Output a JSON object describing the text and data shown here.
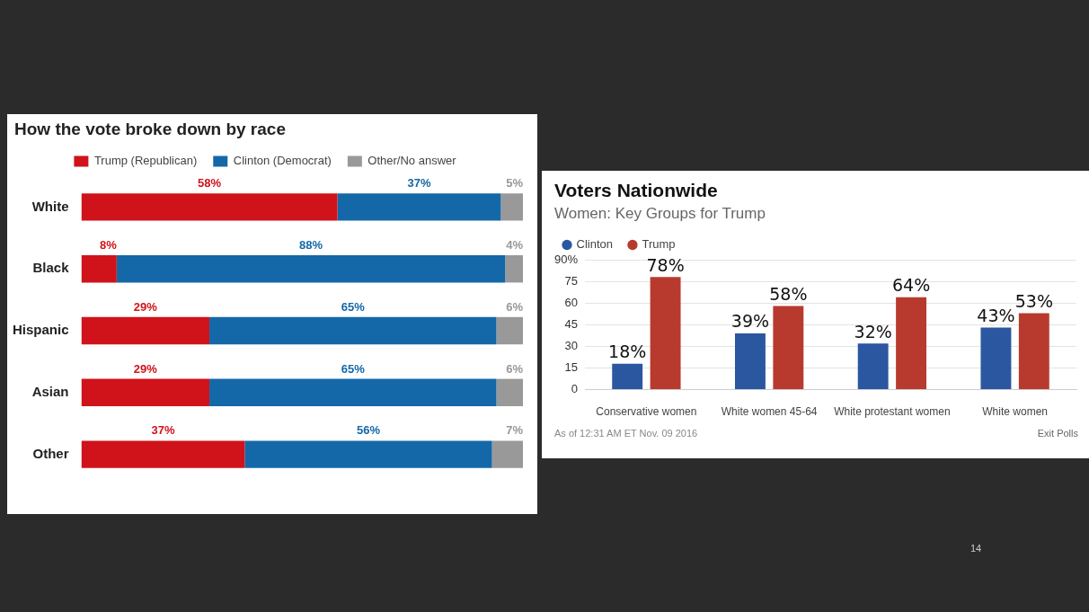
{
  "chart_data": [
    {
      "type": "bar",
      "title": "How the vote broke down by race",
      "orientation": "horizontal",
      "stacked": true,
      "legend": "top",
      "grid": false,
      "tick_labels": "y",
      "categories": [
        "White",
        "Black",
        "Hispanic",
        "Asian",
        "Other"
      ],
      "series": [
        {
          "name": "Trump (Republican)",
          "color": "#d0121b",
          "values": [
            58,
            8,
            29,
            29,
            37
          ],
          "value_labels": [
            "58%",
            "8%",
            "29%",
            "29%",
            "37%"
          ]
        },
        {
          "name": "Clinton (Democrat)",
          "color": "#1468a8",
          "values": [
            37,
            88,
            65,
            65,
            56
          ],
          "value_labels": [
            "37%",
            "88%",
            "65%",
            "65%",
            "56%"
          ]
        },
        {
          "name": "Other/No answer",
          "color": "#999999",
          "values": [
            5,
            4,
            6,
            6,
            7
          ],
          "value_labels": [
            "5%",
            "4%",
            "6%",
            "6%",
            "7%"
          ]
        }
      ]
    },
    {
      "type": "bar",
      "title": "Voters Nationwide",
      "subtitle": "Women: Key Groups for Trump",
      "legend": "top left",
      "grid": "y",
      "categories": [
        "Conservative women",
        "White women 45-64",
        "White protestant women",
        "White women"
      ],
      "ylim": [
        0,
        90
      ],
      "yticks": [
        0,
        15,
        30,
        45,
        60,
        75,
        {
          "value": 90,
          "label": "90%"
        }
      ],
      "series": [
        {
          "name": "Clinton",
          "color": "#2b56a0",
          "values": [
            18,
            39,
            32,
            43
          ],
          "value_labels": [
            "18%",
            "39%",
            "32%",
            "43%"
          ]
        },
        {
          "name": "Trump",
          "color": "#b83a2e",
          "values": [
            78,
            58,
            64,
            53
          ],
          "value_labels": [
            "78%",
            "58%",
            "64%",
            "53%"
          ]
        }
      ],
      "annotations": [
        "As of 12:31 AM ET Nov. 09 2016",
        "Exit Polls",
        "14"
      ]
    }
  ]
}
